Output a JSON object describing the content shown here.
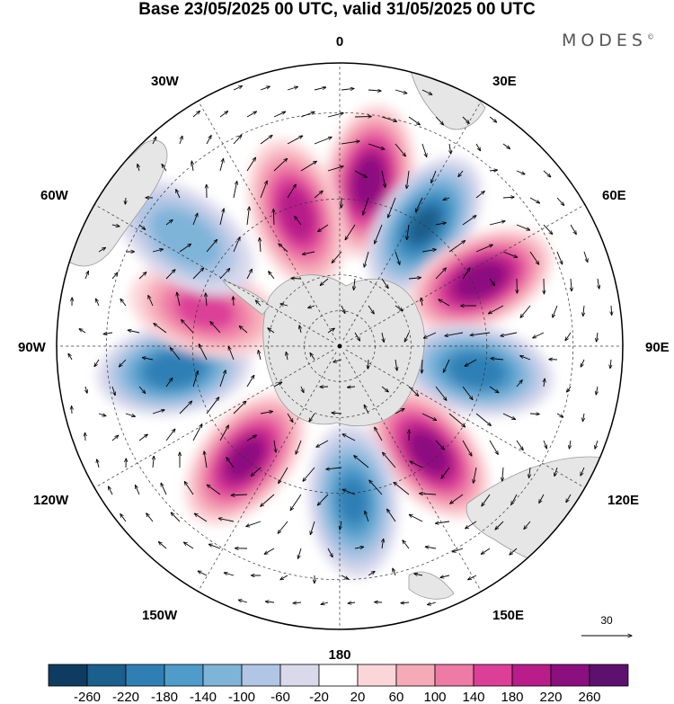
{
  "title": "Base 23/05/2025 00 UTC, valid 31/05/2025 00 UTC",
  "brand": "MODES",
  "brand_mark": "©",
  "longitude_labels": {
    "top": "0",
    "bottom": "180",
    "left": "90W",
    "right": "90E",
    "upper_left_1": "30W",
    "upper_left_2": "60W",
    "lower_left_1": "120W",
    "lower_left_2": "150W",
    "upper_right_1": "30E",
    "upper_right_2": "60E",
    "lower_right_1": "120E",
    "lower_right_2": "150E"
  },
  "reference_vector": {
    "label": "30",
    "icon": "reference-arrow-icon"
  },
  "colorbar": {
    "colors": [
      "#0d3c60",
      "#1b5f8c",
      "#2f7fb5",
      "#4f9bc9",
      "#7fb4d9",
      "#b0c6e4",
      "#dad9ec",
      "#ffffff",
      "#fbd6d9",
      "#f6aab8",
      "#ee7aa6",
      "#dc3f97",
      "#b81d8a",
      "#8c0f80",
      "#5e106f"
    ],
    "labels": [
      "-260",
      "-220",
      "-180",
      "-140",
      "-100",
      "-60",
      "-20",
      "20",
      "60",
      "100",
      "140",
      "180",
      "220",
      "260"
    ]
  },
  "anomalies": [
    {
      "lon": 10,
      "lat": -45,
      "value": 240
    },
    {
      "lon": -18,
      "lat": -52,
      "value": 200
    },
    {
      "lon": 35,
      "lat": -50,
      "value": -220
    },
    {
      "lon": 65,
      "lat": -48,
      "value": 250
    },
    {
      "lon": 100,
      "lat": -52,
      "value": -200
    },
    {
      "lon": 140,
      "lat": -52,
      "value": 240
    },
    {
      "lon": 175,
      "lat": -48,
      "value": -180
    },
    {
      "lon": -140,
      "lat": -50,
      "value": 230
    },
    {
      "lon": -98,
      "lat": -45,
      "value": -210
    },
    {
      "lon": -75,
      "lat": -52,
      "value": 150
    },
    {
      "lon": -55,
      "lat": -40,
      "value": -120
    }
  ]
}
